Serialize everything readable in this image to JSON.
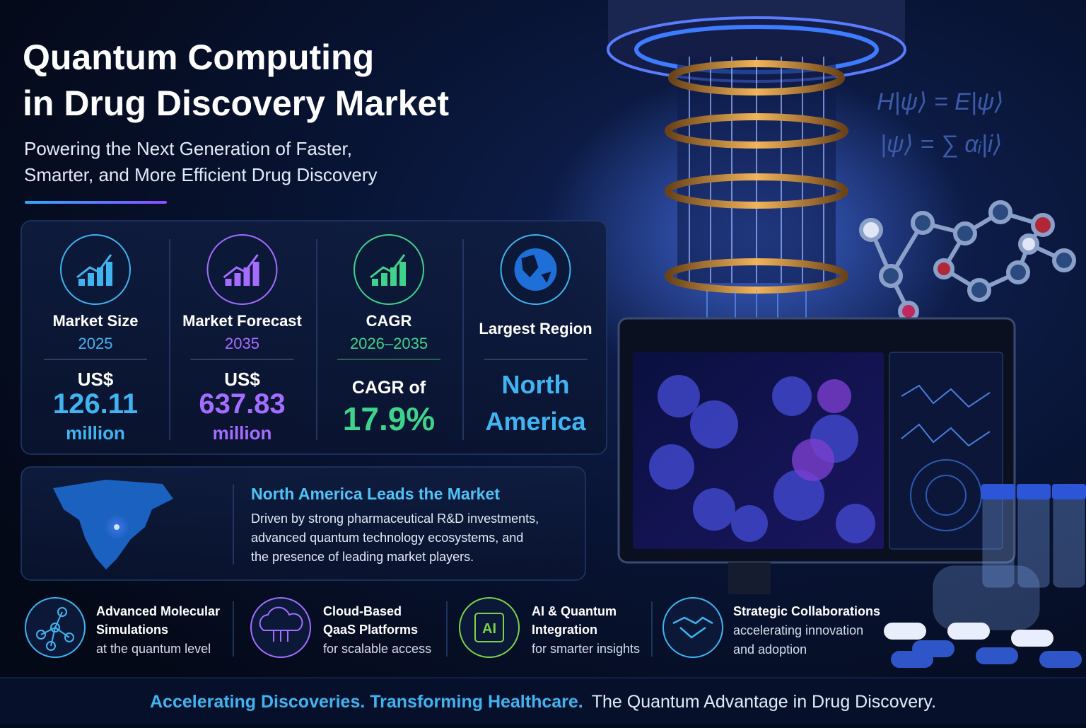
{
  "header": {
    "title_lines": [
      "Quantum Computing",
      "in Drug Discovery Market"
    ],
    "subtitle_lines": [
      "Powering the Next Generation of Faster,",
      "Smarter, and More Efficient Drug Discovery"
    ]
  },
  "stats": [
    {
      "label": "Market Size",
      "period": "2025",
      "lines": [
        "US$",
        "126.11",
        "million"
      ]
    },
    {
      "label": "Market Forecast",
      "period": "2035",
      "lines": [
        "US$",
        "637.83",
        "million"
      ]
    },
    {
      "label": "CAGR",
      "period": "2026–2035",
      "lines": [
        "CAGR of",
        "17.9%"
      ]
    },
    {
      "label": "Largest Region",
      "lines": [
        "North",
        "America"
      ]
    }
  ],
  "region_panel": {
    "heading": "North America Leads the Market",
    "body_lines": [
      "Driven by strong pharmaceutical R&D investments,",
      "advanced quantum technology ecosystems, and",
      "the presence of leading market players."
    ]
  },
  "features": [
    {
      "title_lines": [
        "Advanced Molecular",
        "Simulations"
      ],
      "caption_lines": [
        "at the quantum level"
      ]
    },
    {
      "title_lines": [
        "Cloud-Based",
        "QaaS Platforms"
      ],
      "caption_lines": [
        "for scalable access"
      ]
    },
    {
      "title_lines": [
        "AI & Quantum",
        "Integration"
      ],
      "caption_lines": [
        "for smarter insights"
      ],
      "icon_label": "AI"
    },
    {
      "title_lines": [
        "Strategic Collaborations"
      ],
      "caption_lines": [
        "accelerating innovation",
        "and adoption"
      ]
    }
  ],
  "decor": {
    "equations": [
      "H|ψ⟩ = E|ψ⟩",
      "|ψ⟩ = ∑ αᵢ|i⟩"
    ]
  },
  "footer": {
    "highlight": "Accelerating Discoveries. Transforming Healthcare.",
    "text": "The Quantum Advantage in Drug Discovery."
  }
}
